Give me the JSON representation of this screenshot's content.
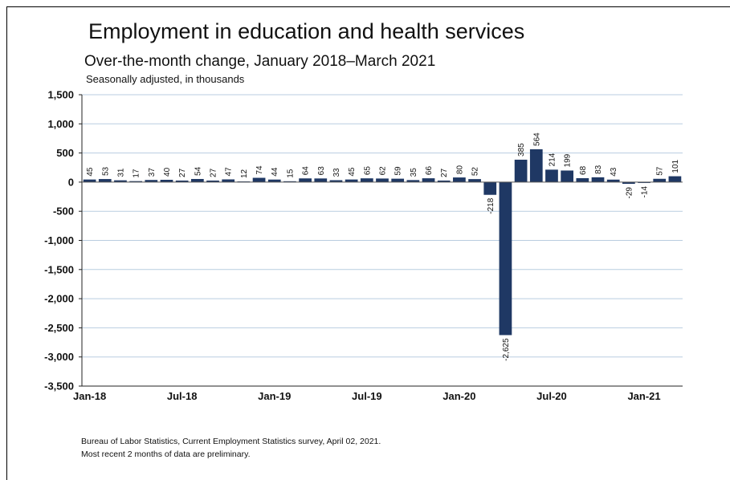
{
  "chart_data": {
    "type": "bar",
    "title": "Employment in education and health services",
    "subtitle": "Over-the-month change, January 2018–March 2021",
    "units_note": "Seasonally adjusted, in thousands",
    "ylim": [
      -3500,
      1500
    ],
    "y_ticks": [
      1500,
      1000,
      500,
      0,
      -500,
      -1000,
      -1500,
      -2000,
      -2500,
      -3000,
      -3500
    ],
    "y_tick_labels": [
      "1,500",
      "1,000",
      "500",
      "0",
      "-500",
      "-1,000",
      "-1,500",
      "-2,000",
      "-2,500",
      "-3,000",
      "-3,500"
    ],
    "x_tick_labels": [
      "Jan-18",
      "Jul-18",
      "Jan-19",
      "Jul-19",
      "Jan-20",
      "Jul-20",
      "Jan-21"
    ],
    "grid": true,
    "bar_color": "#1f3864",
    "categories": [
      "Jan-18",
      "Feb-18",
      "Mar-18",
      "Apr-18",
      "May-18",
      "Jun-18",
      "Jul-18",
      "Aug-18",
      "Sep-18",
      "Oct-18",
      "Nov-18",
      "Dec-18",
      "Jan-19",
      "Feb-19",
      "Mar-19",
      "Apr-19",
      "May-19",
      "Jun-19",
      "Jul-19",
      "Aug-19",
      "Sep-19",
      "Oct-19",
      "Nov-19",
      "Dec-19",
      "Jan-20",
      "Feb-20",
      "Mar-20",
      "Apr-20",
      "May-20",
      "Jun-20",
      "Jul-20",
      "Aug-20",
      "Sep-20",
      "Oct-20",
      "Nov-20",
      "Dec-20",
      "Jan-21",
      "Feb-21",
      "Mar-21"
    ],
    "values": [
      45,
      53,
      31,
      17,
      37,
      40,
      27,
      54,
      27,
      47,
      12,
      74,
      44,
      15,
      64,
      63,
      33,
      45,
      65,
      62,
      59,
      35,
      66,
      27,
      80,
      52,
      -218,
      -2625,
      385,
      564,
      214,
      199,
      68,
      83,
      43,
      -29,
      -14,
      57,
      101
    ],
    "data_labels": [
      "45",
      "53",
      "31",
      "17",
      "37",
      "40",
      "27",
      "54",
      "27",
      "47",
      "12",
      "74",
      "44",
      "15",
      "64",
      "63",
      "33",
      "45",
      "65",
      "62",
      "59",
      "35",
      "66",
      "27",
      "80",
      "52",
      "-218",
      "-2,625",
      "385",
      "564",
      "214",
      "199",
      "68",
      "83",
      "43",
      "-29",
      "-14",
      "57",
      "101"
    ]
  },
  "footer": {
    "source": "Bureau of Labor Statistics, Current Employment Statistics survey, April 02, 2021.",
    "note": "Most recent 2 months of data are preliminary."
  }
}
